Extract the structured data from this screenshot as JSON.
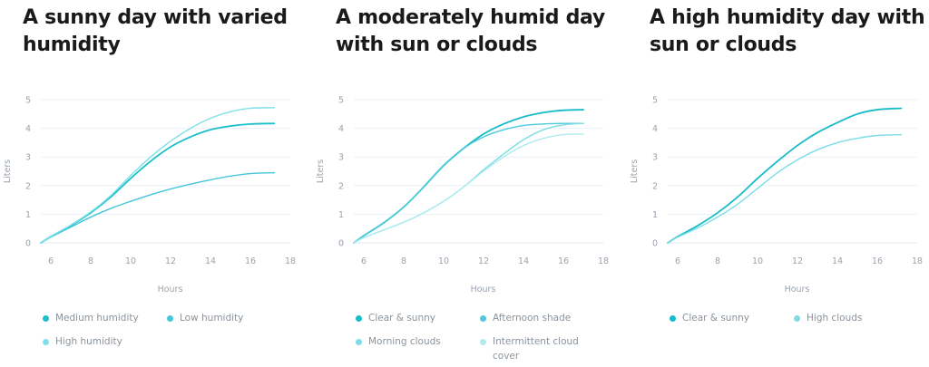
{
  "chart_data": [
    {
      "type": "line",
      "title": "A sunny day with varied humidity",
      "xlabel": "Hours",
      "ylabel": "Liters",
      "xlim": [
        5.5,
        18
      ],
      "ylim": [
        0,
        5
      ],
      "xticks": [
        6,
        8,
        10,
        12,
        14,
        16,
        18
      ],
      "yticks": [
        0,
        1,
        2,
        3,
        4,
        5
      ],
      "grid": "horizontal",
      "legend_position": "bottom",
      "series": [
        {
          "name": "Medium humidity",
          "color": "#1bbfc9",
          "x": [
            5.5,
            6,
            7,
            8,
            9,
            10,
            11,
            12,
            13,
            14,
            15,
            16,
            17.2
          ],
          "y": [
            0,
            0.22,
            0.6,
            1.05,
            1.6,
            2.25,
            2.85,
            3.35,
            3.7,
            3.95,
            4.08,
            4.15,
            4.17
          ]
        },
        {
          "name": "Low humidity",
          "color": "#45c6db",
          "x": [
            5.5,
            6,
            7,
            8,
            9,
            10,
            11,
            12,
            13,
            14,
            15,
            16,
            17.2
          ],
          "y": [
            0,
            0.2,
            0.55,
            0.9,
            1.2,
            1.45,
            1.68,
            1.88,
            2.05,
            2.2,
            2.33,
            2.42,
            2.45
          ]
        },
        {
          "name": "High humidity",
          "color": "#7fe0e8",
          "x": [
            5.5,
            6,
            7,
            8,
            9,
            10,
            11,
            12,
            13,
            14,
            15,
            16,
            17.2
          ],
          "y": [
            0,
            0.23,
            0.62,
            1.08,
            1.65,
            2.35,
            3.0,
            3.55,
            4.0,
            4.35,
            4.58,
            4.7,
            4.72
          ]
        }
      ]
    },
    {
      "type": "line",
      "title": "A moderately humid day with sun or clouds",
      "xlabel": "Hours",
      "ylabel": "Liters",
      "xlim": [
        5.5,
        18
      ],
      "ylim": [
        0,
        5
      ],
      "xticks": [
        6,
        8,
        10,
        12,
        14,
        16,
        18
      ],
      "yticks": [
        0,
        1,
        2,
        3,
        4,
        5
      ],
      "grid": "horizontal",
      "legend_position": "bottom",
      "series": [
        {
          "name": "Clear & sunny",
          "color": "#17bcc6",
          "x": [
            5.5,
            6,
            7,
            8,
            9,
            10,
            11,
            12,
            13,
            14,
            15,
            16,
            17
          ],
          "y": [
            0,
            0.25,
            0.7,
            1.25,
            1.95,
            2.7,
            3.3,
            3.8,
            4.15,
            4.4,
            4.55,
            4.63,
            4.65
          ]
        },
        {
          "name": "Afternoon shade",
          "color": "#4cc9dc",
          "x": [
            5.5,
            6,
            7,
            8,
            9,
            10,
            11,
            12,
            13,
            14,
            15,
            16,
            17
          ],
          "y": [
            0,
            0.25,
            0.7,
            1.25,
            1.95,
            2.7,
            3.3,
            3.7,
            3.95,
            4.1,
            4.15,
            4.17,
            4.17
          ]
        },
        {
          "name": "Morning clouds",
          "color": "#7cdde6",
          "x": [
            5.5,
            6,
            7,
            8,
            9,
            10,
            11,
            12,
            13,
            14,
            15,
            16,
            17
          ],
          "y": [
            0,
            0.18,
            0.45,
            0.72,
            1.05,
            1.45,
            1.95,
            2.55,
            3.1,
            3.6,
            3.95,
            4.12,
            4.17
          ]
        },
        {
          "name": "Intermittent cloud cover",
          "color": "#b0ebf0",
          "x": [
            5.5,
            6,
            7,
            8,
            9,
            10,
            11,
            12,
            13,
            14,
            15,
            16,
            17
          ],
          "y": [
            0,
            0.18,
            0.45,
            0.72,
            1.05,
            1.45,
            1.95,
            2.5,
            3.0,
            3.4,
            3.65,
            3.78,
            3.8
          ]
        }
      ]
    },
    {
      "type": "line",
      "title": "A high humidity day with sun or clouds",
      "xlabel": "Hours",
      "ylabel": "Liters",
      "xlim": [
        5.5,
        18
      ],
      "ylim": [
        0,
        5
      ],
      "xticks": [
        6,
        8,
        10,
        12,
        14,
        16,
        18
      ],
      "yticks": [
        0,
        1,
        2,
        3,
        4,
        5
      ],
      "grid": "horizontal",
      "legend_position": "bottom",
      "series": [
        {
          "name": "Clear & sunny",
          "color": "#17bcc6",
          "x": [
            5.5,
            6,
            7,
            8,
            9,
            10,
            11,
            12,
            13,
            14,
            15,
            16,
            17.2
          ],
          "y": [
            0,
            0.22,
            0.6,
            1.05,
            1.6,
            2.25,
            2.85,
            3.4,
            3.85,
            4.2,
            4.5,
            4.65,
            4.7
          ]
        },
        {
          "name": "High clouds",
          "color": "#7cdde6",
          "x": [
            5.5,
            6,
            7,
            8,
            9,
            10,
            11,
            12,
            13,
            14,
            15,
            16,
            17.2
          ],
          "y": [
            0,
            0.2,
            0.52,
            0.9,
            1.35,
            1.9,
            2.45,
            2.9,
            3.25,
            3.5,
            3.65,
            3.75,
            3.78
          ]
        }
      ]
    }
  ]
}
